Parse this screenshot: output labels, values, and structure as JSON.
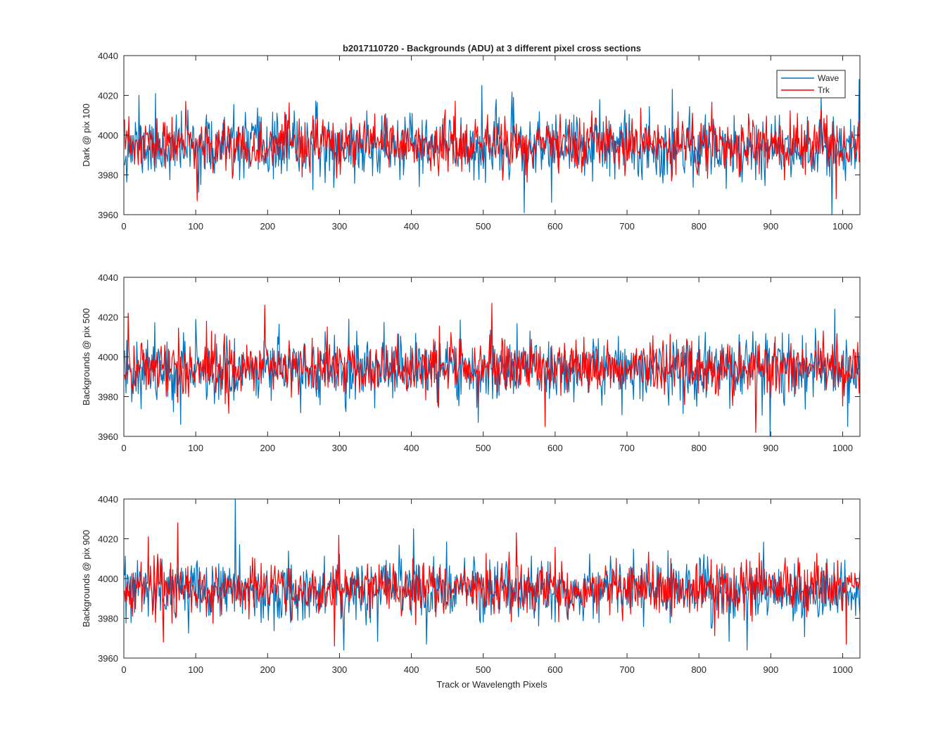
{
  "chart_data": [
    {
      "type": "line",
      "title": "b2017110720 - Backgrounds (ADU) at 3 different pixel cross sections",
      "xlabel": "",
      "ylabel": "Dark @ pix 100",
      "xlim": [
        0,
        1024
      ],
      "ylim": [
        3960,
        4040
      ],
      "xticks": [
        "0",
        "100",
        "200",
        "300",
        "400",
        "500",
        "600",
        "700",
        "800",
        "900",
        "1000"
      ],
      "yticks": [
        "3960",
        "3980",
        "4000",
        "4020",
        "4040"
      ],
      "legend": {
        "location": "top-right",
        "entries": [
          "Wave",
          "Trk"
        ]
      },
      "series": [
        {
          "name": "Wave",
          "color": "#0072bd",
          "n_points": 1024,
          "mean": 3994,
          "std": 8,
          "seed": 11,
          "peaks": [
            [
              20,
              4020
            ],
            [
              43,
              4021
            ],
            [
              497,
              4025
            ],
            [
              556,
              3961
            ],
            [
              762,
              4023
            ],
            [
              984,
              3960
            ],
            [
              1022,
              4028
            ]
          ]
        },
        {
          "name": "Trk",
          "color": "#ff0000",
          "n_points": 1024,
          "mean": 3995,
          "std": 6.5,
          "seed": 23,
          "peaks": [
            [
              85,
              4017
            ],
            [
              101,
              3967
            ],
            [
              990,
              3968
            ]
          ]
        }
      ]
    },
    {
      "type": "line",
      "title": "",
      "xlabel": "",
      "ylabel": "Backgrounds @ pix 500",
      "xlim": [
        0,
        1024
      ],
      "ylim": [
        3960,
        4040
      ],
      "xticks": [
        "0",
        "100",
        "200",
        "300",
        "400",
        "500",
        "600",
        "700",
        "800",
        "900",
        "1000"
      ],
      "yticks": [
        "3960",
        "3980",
        "4000",
        "4020",
        "4040"
      ],
      "series": [
        {
          "name": "Wave",
          "color": "#0072bd",
          "n_points": 1024,
          "mean": 3994,
          "std": 8,
          "seed": 37,
          "peaks": [
            [
              78,
              3966
            ],
            [
              312,
              4019
            ],
            [
              492,
              3967
            ],
            [
              898,
              3960
            ],
            [
              988,
              4024
            ],
            [
              1006,
              3965
            ]
          ]
        },
        {
          "name": "Trk",
          "color": "#ff0000",
          "n_points": 1024,
          "mean": 3995,
          "std": 7,
          "seed": 41,
          "peaks": [
            [
              5,
              4022
            ],
            [
              195,
              4026
            ],
            [
              511,
              4027
            ],
            [
              585,
              3965
            ],
            [
              878,
              3962
            ]
          ]
        }
      ]
    },
    {
      "type": "line",
      "title": "",
      "xlabel": "Track or Wavelength Pixels",
      "ylabel": "Backgrounds @ pix 900",
      "xlim": [
        0,
        1024
      ],
      "ylim": [
        3960,
        4040
      ],
      "xticks": [
        "0",
        "100",
        "200",
        "300",
        "400",
        "500",
        "600",
        "700",
        "800",
        "900",
        "1000"
      ],
      "yticks": [
        "3960",
        "3980",
        "4000",
        "4020",
        "4040"
      ],
      "series": [
        {
          "name": "Wave",
          "color": "#0072bd",
          "n_points": 1024,
          "mean": 3994,
          "std": 7.5,
          "seed": 53,
          "peaks": [
            [
              154,
              4040
            ],
            [
              160,
              4017
            ],
            [
              402,
              4025
            ],
            [
              305,
              3964
            ],
            [
              420,
              3967
            ],
            [
              866,
              3964
            ]
          ]
        },
        {
          "name": "Trk",
          "color": "#ff0000",
          "n_points": 1024,
          "mean": 3995,
          "std": 6.5,
          "seed": 67,
          "peaks": [
            [
              74,
              4028
            ],
            [
              33,
              4021
            ],
            [
              54,
              3968
            ],
            [
              292,
              3966
            ],
            [
              545,
              4023
            ],
            [
              1004,
              3967
            ]
          ]
        }
      ]
    }
  ]
}
